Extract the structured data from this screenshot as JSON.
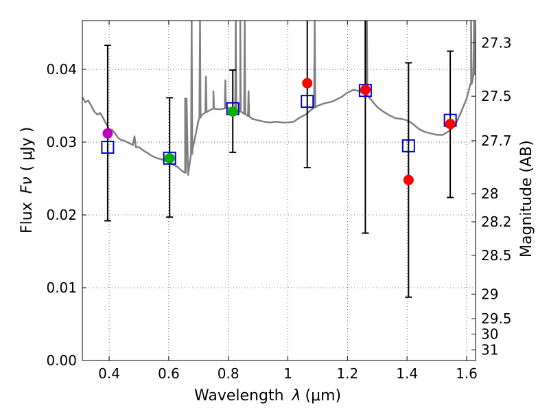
{
  "chart_data": {
    "type": "scatter",
    "xlabel_text": "Wavelength",
    "xlabel_symbol": "λ",
    "xlabel_unit": "(μm)",
    "ylabel_text": "Flux",
    "ylabel_symbol": "Fν",
    "ylabel_unit": "( μJy )",
    "y2label": "Magnitude (AB)",
    "xlim": [
      0.31,
      1.63
    ],
    "ylim": [
      0.0,
      0.0467
    ],
    "xticks": [
      0.4,
      0.6,
      0.8,
      1.0,
      1.2,
      1.4,
      1.6
    ],
    "xtick_labels": [
      "0.4",
      "0.6",
      "0.8",
      "1",
      "1.2",
      "1.4",
      "1.6"
    ],
    "yticks": [
      0.0,
      0.01,
      0.02,
      0.03,
      0.04
    ],
    "ytick_labels": [
      "0.00",
      "0.01",
      "0.02",
      "0.03",
      "0.04"
    ],
    "mag_ticks": [
      27.3,
      27.5,
      27.7,
      28,
      28.2,
      28.5,
      29,
      29.5,
      30,
      31
    ],
    "mag_tick_labels": [
      "27.3",
      "27.5",
      "27.7",
      "28",
      "28.2",
      "28.5",
      "29",
      "29.5",
      "30",
      "31"
    ],
    "grid": true,
    "colors": {
      "spectrum": "#808080",
      "model_box": "#0000cc",
      "errorbar": "#000000",
      "dot_magenta": "#bf00bf",
      "dot_green": "#00b000",
      "dot_red": "#ff0000"
    },
    "spectrum": [
      [
        0.31,
        0.0362
      ],
      [
        0.32,
        0.0355
      ],
      [
        0.33,
        0.0357
      ],
      [
        0.34,
        0.035
      ],
      [
        0.35,
        0.0342
      ],
      [
        0.36,
        0.0338
      ],
      [
        0.37,
        0.034
      ],
      [
        0.38,
        0.0333
      ],
      [
        0.39,
        0.0325
      ],
      [
        0.4,
        0.0318
      ],
      [
        0.41,
        0.0317
      ],
      [
        0.42,
        0.0312
      ],
      [
        0.43,
        0.0306
      ],
      [
        0.44,
        0.0303
      ],
      [
        0.45,
        0.0302
      ],
      [
        0.46,
        0.03
      ],
      [
        0.47,
        0.0298
      ],
      [
        0.48,
        0.0296
      ],
      [
        0.485,
        0.0308
      ],
      [
        0.49,
        0.0293
      ],
      [
        0.5,
        0.0293
      ],
      [
        0.51,
        0.029
      ],
      [
        0.52,
        0.0287
      ],
      [
        0.53,
        0.0285
      ],
      [
        0.54,
        0.0282
      ],
      [
        0.55,
        0.028
      ],
      [
        0.56,
        0.0278
      ],
      [
        0.57,
        0.0277
      ],
      [
        0.58,
        0.0276
      ],
      [
        0.59,
        0.0274
      ],
      [
        0.6,
        0.0272
      ],
      [
        0.61,
        0.027
      ],
      [
        0.62,
        0.0268
      ],
      [
        0.63,
        0.0266
      ],
      [
        0.64,
        0.0262
      ],
      [
        0.655,
        0.0258
      ],
      [
        0.66,
        0.036
      ],
      [
        0.665,
        0.0255
      ],
      [
        0.67,
        0.027
      ],
      [
        0.68,
        0.029
      ],
      [
        0.69,
        0.031
      ],
      [
        0.7,
        0.033
      ],
      [
        0.71,
        0.0337
      ],
      [
        0.72,
        0.034
      ],
      [
        0.73,
        0.0342
      ],
      [
        0.75,
        0.0346
      ],
      [
        0.77,
        0.0345
      ],
      [
        0.8,
        0.0347
      ],
      [
        0.82,
        0.0343
      ],
      [
        0.84,
        0.0342
      ],
      [
        0.86,
        0.0338
      ],
      [
        0.88,
        0.0332
      ],
      [
        0.9,
        0.033
      ],
      [
        0.92,
        0.0328
      ],
      [
        0.94,
        0.0327
      ],
      [
        0.96,
        0.0328
      ],
      [
        0.98,
        0.0327
      ],
      [
        1.0,
        0.0327
      ],
      [
        1.02,
        0.0328
      ],
      [
        1.04,
        0.0334
      ],
      [
        1.06,
        0.0338
      ],
      [
        1.08,
        0.0345
      ],
      [
        1.1,
        0.035
      ],
      [
        1.12,
        0.0353
      ],
      [
        1.15,
        0.0356
      ],
      [
        1.18,
        0.0362
      ],
      [
        1.2,
        0.0368
      ],
      [
        1.22,
        0.0372
      ],
      [
        1.24,
        0.037
      ],
      [
        1.26,
        0.0366
      ],
      [
        1.28,
        0.0358
      ],
      [
        1.3,
        0.0348
      ],
      [
        1.32,
        0.0342
      ],
      [
        1.34,
        0.0337
      ],
      [
        1.36,
        0.0333
      ],
      [
        1.38,
        0.0332
      ],
      [
        1.4,
        0.033
      ],
      [
        1.42,
        0.0325
      ],
      [
        1.44,
        0.0318
      ],
      [
        1.46,
        0.0314
      ],
      [
        1.48,
        0.0312
      ],
      [
        1.5,
        0.031
      ],
      [
        1.52,
        0.031
      ],
      [
        1.54,
        0.0315
      ],
      [
        1.56,
        0.0322
      ],
      [
        1.58,
        0.034
      ],
      [
        1.6,
        0.036
      ],
      [
        1.615,
        0.038
      ],
      [
        1.63,
        0.04
      ]
    ],
    "spectrum_spikes": [
      [
        0.655,
        0.036
      ],
      [
        0.677,
        0.0467
      ],
      [
        0.705,
        0.0467
      ],
      [
        0.725,
        0.039
      ],
      [
        0.75,
        0.037
      ],
      [
        0.79,
        0.0385
      ],
      [
        0.825,
        0.047
      ],
      [
        0.84,
        0.0467
      ],
      [
        0.855,
        0.0467
      ],
      [
        0.868,
        0.037
      ],
      [
        1.09,
        0.0467
      ],
      [
        1.26,
        0.0467
      ],
      [
        1.265,
        0.0467
      ],
      [
        1.615,
        0.0467
      ],
      [
        1.625,
        0.0467
      ]
    ],
    "measurements": [
      {
        "x": 0.395,
        "y": 0.0312,
        "color": "magenta",
        "err_low": 0.0192,
        "err_high": 0.0433,
        "model": 0.0293
      },
      {
        "x": 0.603,
        "y": 0.0278,
        "color": "green",
        "err_low": 0.0197,
        "err_high": 0.0361,
        "model": 0.0278
      },
      {
        "x": 0.815,
        "y": 0.0342,
        "color": "green",
        "err_low": 0.0286,
        "err_high": 0.0399,
        "model": 0.0346
      },
      {
        "x": 1.065,
        "y": 0.0381,
        "color": "red",
        "err_low": 0.0265,
        "err_high": 0.0495,
        "model": 0.0356
      },
      {
        "x": 1.26,
        "y": 0.0372,
        "color": "red",
        "err_low": 0.0175,
        "err_high": 0.057,
        "model": 0.0371
      },
      {
        "x": 1.405,
        "y": 0.0248,
        "color": "red",
        "err_low": 0.0087,
        "err_high": 0.0409,
        "model": 0.0295
      },
      {
        "x": 1.545,
        "y": 0.0325,
        "color": "red",
        "err_low": 0.0224,
        "err_high": 0.0425,
        "model": 0.033
      }
    ]
  }
}
